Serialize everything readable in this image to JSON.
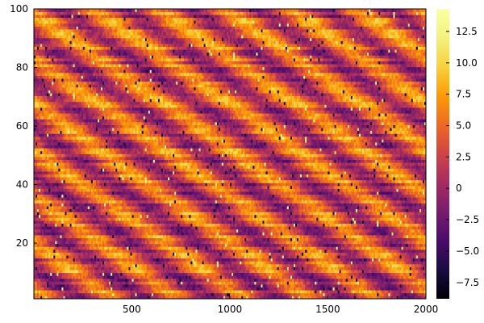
{
  "chart_data": {
    "type": "heatmap",
    "title": "",
    "xlabel": "",
    "ylabel": "",
    "xlim": [
      1,
      2000
    ],
    "ylim": [
      1,
      100
    ],
    "x_ticks": [
      500,
      1000,
      1500,
      2000
    ],
    "x_tick_labels": [
      "500",
      "1000",
      "1500",
      "2000"
    ],
    "y_ticks": [
      20,
      40,
      60,
      80,
      100
    ],
    "y_tick_labels": [
      "20",
      "40",
      "60",
      "80",
      "100"
    ],
    "grid": false,
    "colormap": "inferno",
    "colorbar": {
      "range": [
        -8.8,
        14.3
      ],
      "ticks": [
        -7.5,
        -5.0,
        -2.5,
        0,
        2.5,
        5.0,
        7.5,
        10.0,
        12.5
      ],
      "tick_labels": [
        "−7.5",
        "−5.0",
        "−2.5",
        "0",
        "2.5",
        "5.0",
        "7.5",
        "10.0",
        "12.5"
      ],
      "position": "right"
    },
    "pattern": {
      "description_rows": 100,
      "dominant_range": [
        -3,
        9
      ],
      "structure": "horizontal streaks with diagonal bands descending to the right"
    }
  },
  "colors": {
    "background": "#ffffff",
    "axis": "#000000"
  }
}
